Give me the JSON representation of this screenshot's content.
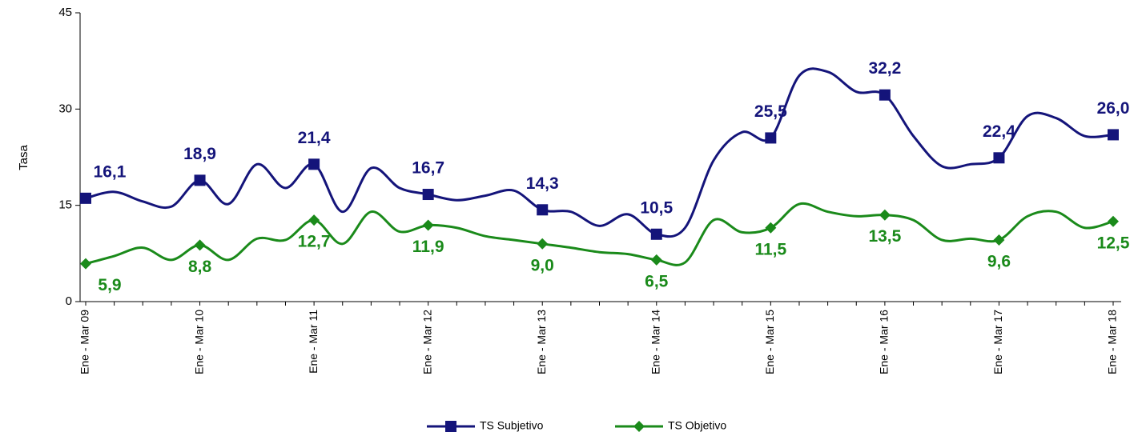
{
  "chart_data": {
    "type": "line",
    "y_label": "Tasa",
    "categories": [
      "Ene - Mar 09",
      null,
      null,
      null,
      "Ene - Mar 10",
      null,
      null,
      null,
      "Ene - Mar 11",
      null,
      null,
      null,
      "Ene - Mar 12",
      null,
      null,
      null,
      "Ene - Mar 13",
      null,
      null,
      null,
      "Ene - Mar 14",
      null,
      null,
      null,
      "Ene - Mar 15",
      null,
      null,
      null,
      "Ene - Mar 16",
      null,
      null,
      null,
      "Ene - Mar 17",
      null,
      null,
      null,
      "Ene - Mar 18"
    ],
    "series": [
      {
        "name": "TS Subjetivo",
        "color": "#14147a",
        "marker": "square",
        "values": [
          16.1,
          17.1,
          15.6,
          14.8,
          18.9,
          15.2,
          21.4,
          17.7,
          21.4,
          14.0,
          20.8,
          17.7,
          16.7,
          15.8,
          16.5,
          17.3,
          14.3,
          14.0,
          11.8,
          13.6,
          10.5,
          11.5,
          22.0,
          26.4,
          25.5,
          35.2,
          35.8,
          32.7,
          32.2,
          25.8,
          21.1,
          21.4,
          22.4,
          28.9,
          28.6,
          25.8,
          26.0
        ],
        "value_labels": [
          "16,1",
          null,
          null,
          null,
          "18,9",
          null,
          null,
          null,
          "21,4",
          null,
          null,
          null,
          "16,7",
          null,
          null,
          null,
          "14,3",
          null,
          null,
          null,
          "10,5",
          null,
          null,
          null,
          "25,5",
          null,
          null,
          null,
          "32,2",
          null,
          null,
          null,
          "22,4",
          null,
          null,
          null,
          "26,0"
        ]
      },
      {
        "name": "TS Objetivo",
        "color": "#1a8a1a",
        "marker": "diamond",
        "values": [
          5.9,
          7.1,
          8.4,
          6.5,
          8.8,
          6.5,
          9.8,
          9.6,
          12.7,
          9.0,
          14.0,
          10.9,
          11.9,
          11.5,
          10.2,
          9.6,
          9.0,
          8.4,
          7.7,
          7.4,
          6.5,
          6.1,
          12.7,
          10.8,
          11.5,
          15.2,
          14.0,
          13.3,
          13.5,
          12.7,
          9.6,
          9.8,
          9.6,
          13.3,
          14.0,
          11.5,
          12.5
        ],
        "value_labels": [
          "5,9",
          null,
          null,
          null,
          "8,8",
          null,
          null,
          null,
          "12,7",
          null,
          null,
          null,
          "11,9",
          null,
          null,
          null,
          "9,0",
          null,
          null,
          null,
          "6,5",
          null,
          null,
          null,
          "11,5",
          null,
          null,
          null,
          "13,5",
          null,
          null,
          null,
          "9,6",
          null,
          null,
          null,
          "12,5"
        ]
      }
    ],
    "ylim": [
      0,
      45
    ],
    "yticks": [
      0,
      15,
      30,
      45
    ],
    "legend": "bottom"
  }
}
